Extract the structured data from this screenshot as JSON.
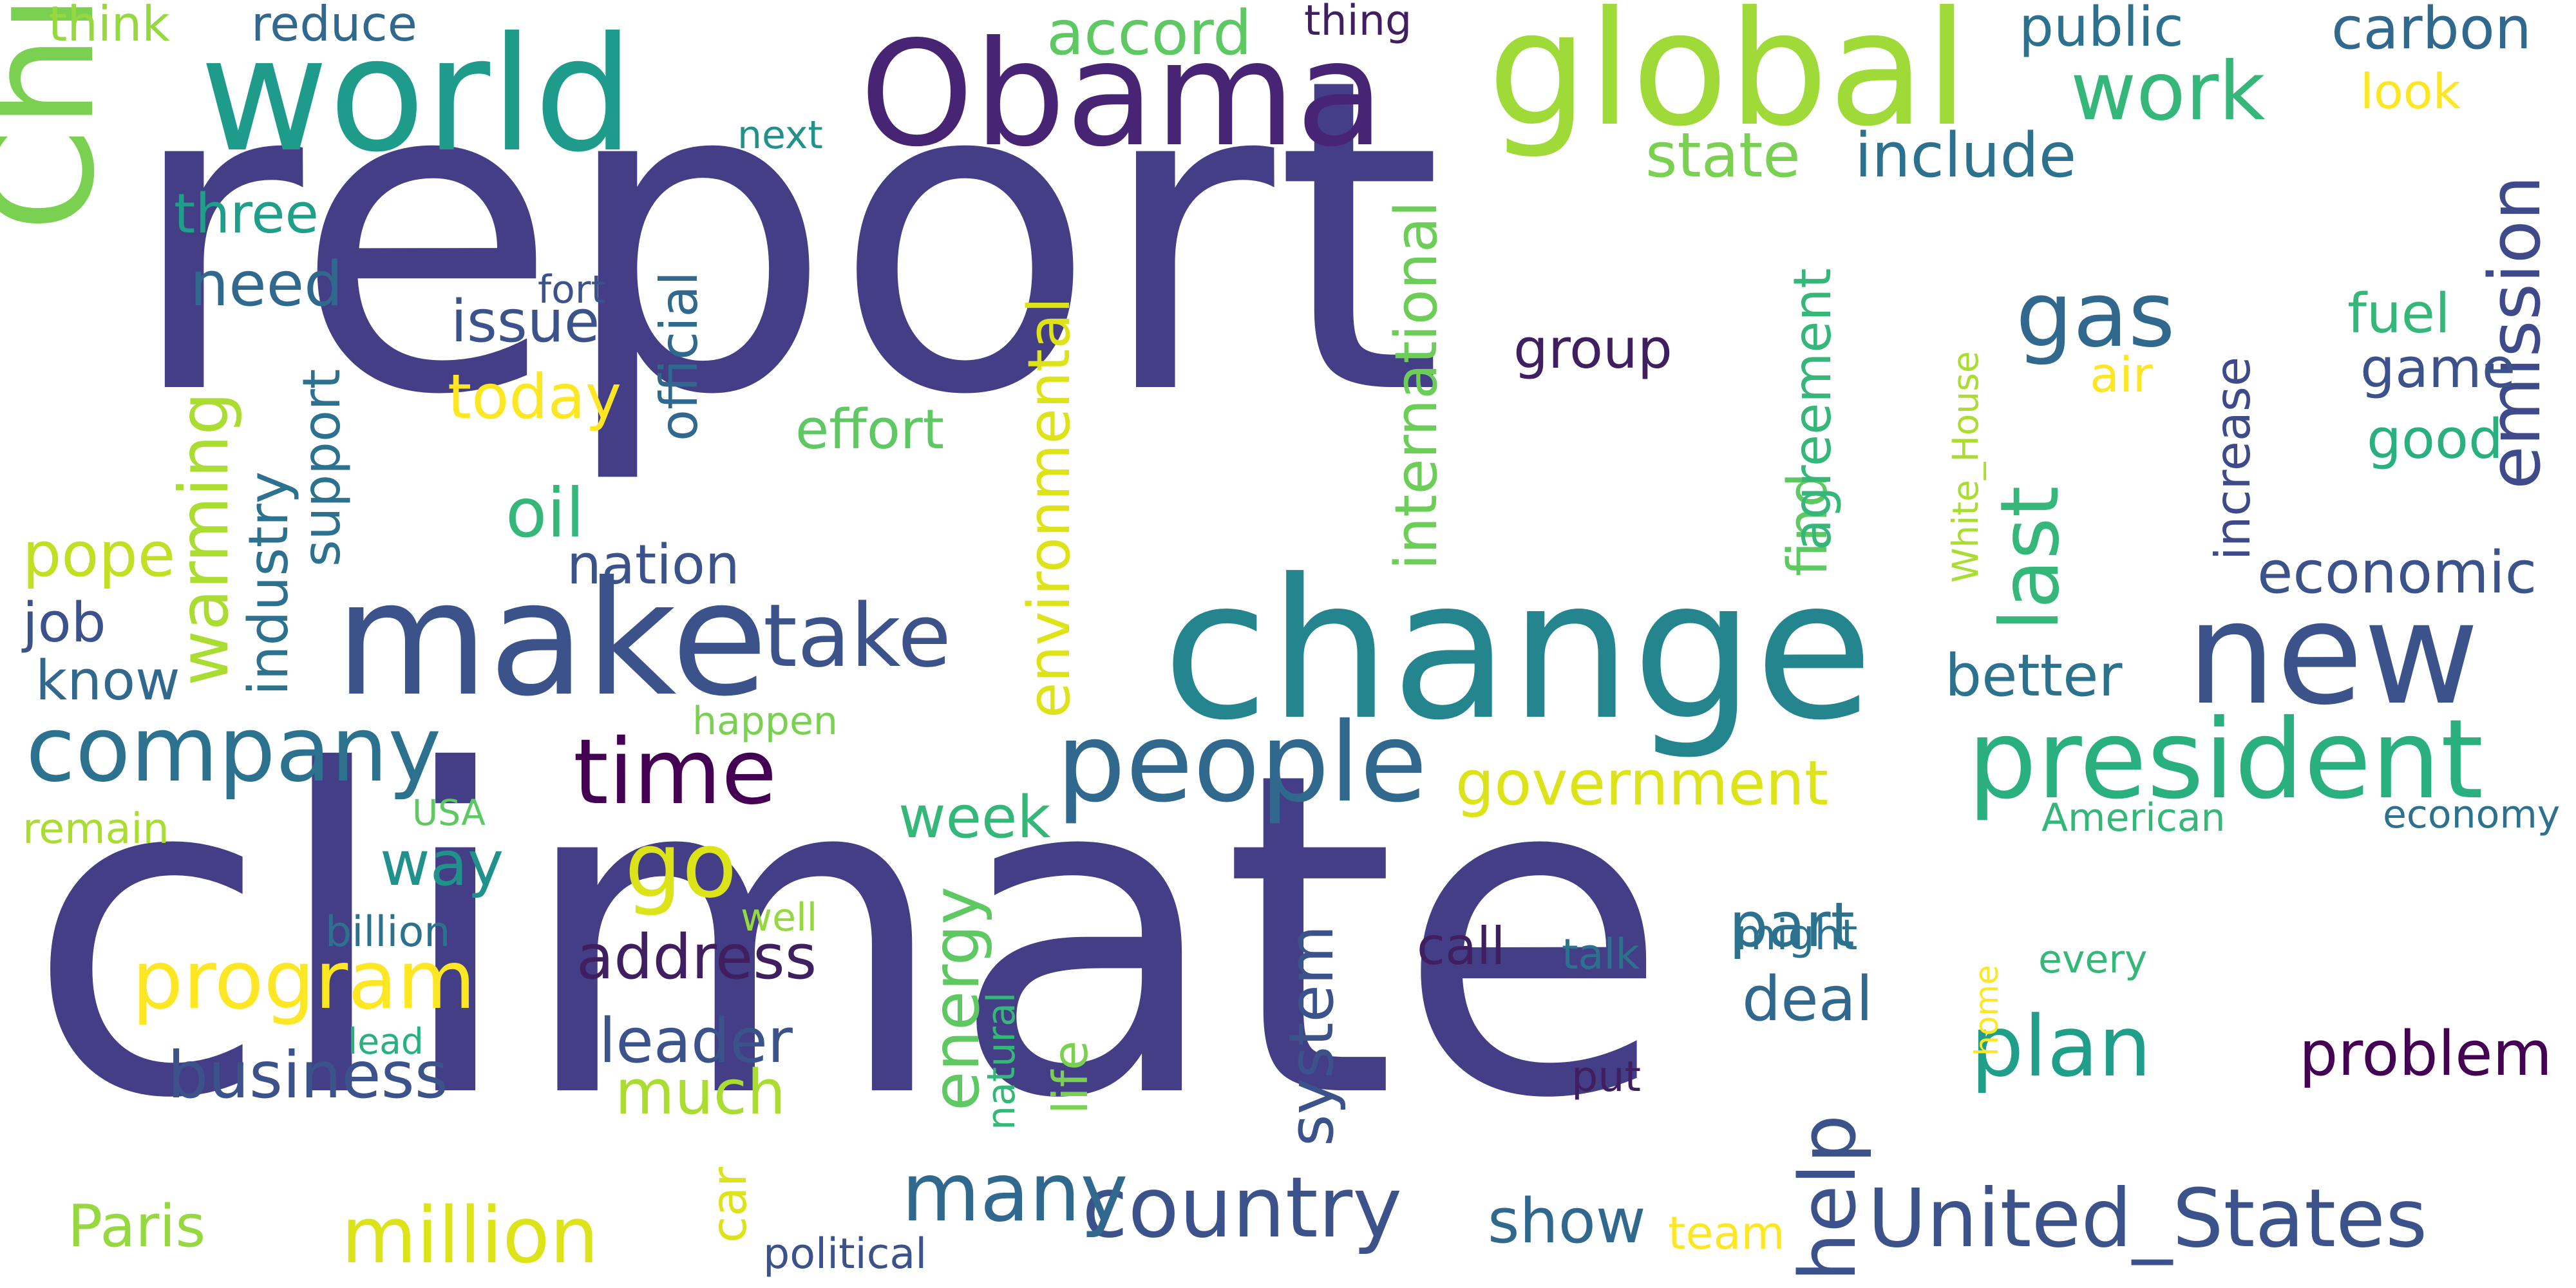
{
  "words": [
    {
      "text": "report",
      "color": "#433E85"
    },
    {
      "text": "climate",
      "color": "#433E85"
    },
    {
      "text": "change",
      "color": "#25858E"
    },
    {
      "text": "Obama",
      "color": "#482475"
    },
    {
      "text": "global",
      "color": "#A0DA39"
    },
    {
      "text": "world",
      "color": "#1E9B8A"
    },
    {
      "text": "China",
      "color": "#7AD151"
    },
    {
      "text": "make",
      "color": "#3B528B"
    },
    {
      "text": "new",
      "color": "#3B528B"
    },
    {
      "text": "president",
      "color": "#2AB07F"
    },
    {
      "text": "people",
      "color": "#31688E"
    },
    {
      "text": "company",
      "color": "#2C728E"
    },
    {
      "text": "time",
      "color": "#440154"
    },
    {
      "text": "take",
      "color": "#3B528B"
    },
    {
      "text": "program",
      "color": "#FDE725"
    },
    {
      "text": "go",
      "color": "#DCE319"
    },
    {
      "text": "million",
      "color": "#DCE319"
    },
    {
      "text": "country",
      "color": "#3B528B"
    },
    {
      "text": "United_States",
      "color": "#3B528B"
    },
    {
      "text": "plan",
      "color": "#1F9E89"
    },
    {
      "text": "many",
      "color": "#31688E"
    },
    {
      "text": "help",
      "color": "#3B528B"
    },
    {
      "text": "gas",
      "color": "#31688E"
    },
    {
      "text": "last",
      "color": "#35B779"
    },
    {
      "text": "emission",
      "color": "#3E4A89"
    },
    {
      "text": "work",
      "color": "#35B779"
    },
    {
      "text": "government",
      "color": "#DCE319"
    },
    {
      "text": "business",
      "color": "#3B528B"
    },
    {
      "text": "address",
      "color": "#3F1F5F"
    },
    {
      "text": "warming",
      "color": "#AADC32"
    },
    {
      "text": "energy",
      "color": "#5EC962"
    },
    {
      "text": "international",
      "color": "#6CCE59"
    },
    {
      "text": "environmental",
      "color": "#DDE318"
    },
    {
      "text": "leader",
      "color": "#3B528B"
    },
    {
      "text": "oil",
      "color": "#35B779"
    },
    {
      "text": "accord",
      "color": "#5EC962"
    },
    {
      "text": "include",
      "color": "#2C728E"
    },
    {
      "text": "state",
      "color": "#7AD151"
    },
    {
      "text": "public",
      "color": "#2C728E"
    },
    {
      "text": "carbon",
      "color": "#31688E"
    },
    {
      "text": "economic",
      "color": "#3B528B"
    },
    {
      "text": "better",
      "color": "#2C728E"
    },
    {
      "text": "problem",
      "color": "#440154"
    },
    {
      "text": "deal",
      "color": "#31688E"
    },
    {
      "text": "part",
      "color": "#2C728E"
    },
    {
      "text": "week",
      "color": "#35B779"
    },
    {
      "text": "show",
      "color": "#31688E"
    },
    {
      "text": "system",
      "color": "#3B528B"
    },
    {
      "text": "much",
      "color": "#AADC32"
    },
    {
      "text": "way",
      "color": "#21918C"
    },
    {
      "text": "effort",
      "color": "#5EC962"
    },
    {
      "text": "today",
      "color": "#FDE725"
    },
    {
      "text": "issue",
      "color": "#3B528B"
    },
    {
      "text": "three",
      "color": "#1F9E89"
    },
    {
      "text": "need",
      "color": "#31688E"
    },
    {
      "text": "pope",
      "color": "#C2DF23"
    },
    {
      "text": "know",
      "color": "#31688E"
    },
    {
      "text": "job",
      "color": "#3B528B"
    },
    {
      "text": "nation",
      "color": "#3B528B"
    },
    {
      "text": "industry",
      "color": "#2C728E"
    },
    {
      "text": "support",
      "color": "#2C728E"
    },
    {
      "text": "official",
      "color": "#31688E"
    },
    {
      "text": "group",
      "color": "#3F1F5F"
    },
    {
      "text": "find",
      "color": "#5EC962"
    },
    {
      "text": "increase",
      "color": "#3E4A89"
    },
    {
      "text": "agreement",
      "color": "#35B779"
    },
    {
      "text": "fuel",
      "color": "#35B779"
    },
    {
      "text": "game",
      "color": "#3B528B"
    },
    {
      "text": "good",
      "color": "#2AB07F"
    },
    {
      "text": "air",
      "color": "#FDE725"
    },
    {
      "text": "look",
      "color": "#FDE725"
    },
    {
      "text": "reduce",
      "color": "#31688E"
    },
    {
      "text": "think",
      "color": "#95D840"
    },
    {
      "text": "thing",
      "color": "#3F1F5F"
    },
    {
      "text": "next",
      "color": "#21918C"
    },
    {
      "text": "fort",
      "color": "#3B528B"
    },
    {
      "text": "Paris",
      "color": "#95D840"
    },
    {
      "text": "car",
      "color": "#DCE319"
    },
    {
      "text": "life",
      "color": "#7AD151"
    },
    {
      "text": "call",
      "color": "#3F1F5F"
    },
    {
      "text": "talk",
      "color": "#2C728E"
    },
    {
      "text": "might",
      "color": "#2C728E"
    },
    {
      "text": "team",
      "color": "#FDE725"
    },
    {
      "text": "political",
      "color": "#3B528B"
    },
    {
      "text": "put",
      "color": "#3F1F5F"
    },
    {
      "text": "natural",
      "color": "#35B779"
    },
    {
      "text": "well",
      "color": "#95D840"
    },
    {
      "text": "billion",
      "color": "#2C728E"
    },
    {
      "text": "lead",
      "color": "#2AB07F"
    },
    {
      "text": "happen",
      "color": "#7AD151"
    },
    {
      "text": "USA",
      "color": "#5EC962"
    },
    {
      "text": "remain",
      "color": "#AADC32"
    },
    {
      "text": "American",
      "color": "#35B779"
    },
    {
      "text": "economy",
      "color": "#2C728E"
    },
    {
      "text": "home",
      "color": "#FDE725"
    },
    {
      "text": "every",
      "color": "#35B779"
    },
    {
      "text": "White_House",
      "color": "#AADC32"
    }
  ]
}
